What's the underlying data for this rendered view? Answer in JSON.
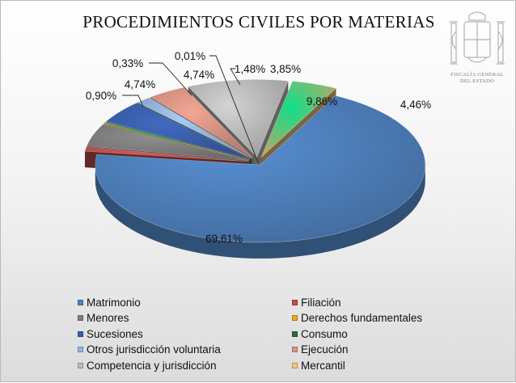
{
  "chart_data": {
    "type": "pie",
    "title": "PROCEDIMIENTOS CIVILES POR MATERIAS",
    "series": [
      {
        "name": "Matrimonio",
        "value": 69.61,
        "label": "69,61%",
        "color": "#4f81bd"
      },
      {
        "name": "Filiación",
        "value": 0.9,
        "label": "0,90%",
        "color": "#c0504d"
      },
      {
        "name": "Menores",
        "value": 4.74,
        "label": "4,74%",
        "color": "#7f7f7f"
      },
      {
        "name": "Derechos fundamentales",
        "value": 0.33,
        "label": "0,33%",
        "color": "#e8a62e"
      },
      {
        "name": "Sucesiones",
        "value": 4.74,
        "label": "4,74%",
        "color": "#3a5fac"
      },
      {
        "name": "Consumo",
        "value": 0.01,
        "label": "0,01%",
        "color": "#2f6b3a"
      },
      {
        "name": "Otros jurisdicción voluntaria",
        "value": 1.48,
        "label": "1,48%",
        "color": "#94b5de"
      },
      {
        "name": "Ejecución",
        "value": 3.85,
        "label": "3,85%",
        "color": "#d99484"
      },
      {
        "name": "Competencia y jurisdicción",
        "value": 9.86,
        "label": "9,86%",
        "color": "#bdbdbd"
      },
      {
        "name": "Mercantil",
        "value": 4.46,
        "label": "4,46%",
        "color": "#f2c77a"
      }
    ],
    "legend_position": "bottom",
    "three_d": true,
    "exploded": true
  },
  "branding": {
    "org_line1": "FISCALÍA GENERAL",
    "org_line2": "DEL ESTADO"
  }
}
